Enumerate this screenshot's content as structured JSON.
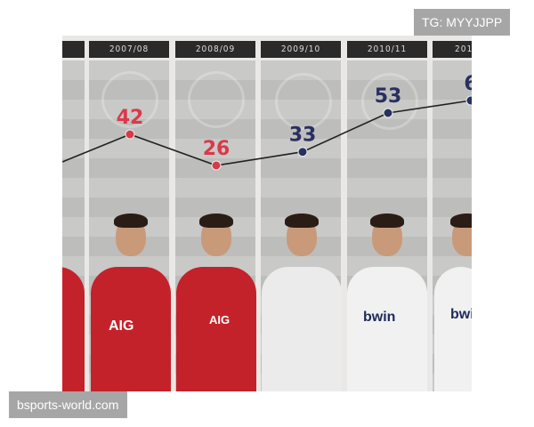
{
  "watermarks": {
    "top": "TG: MYYJJPP",
    "bottom": "bsports-world.com"
  },
  "colors": {
    "man_utd": "#d93a4a",
    "real_madrid": "#27305f",
    "line": "#222222"
  },
  "chart_data": {
    "type": "line",
    "categories": [
      "",
      "2007/08",
      "2008/09",
      "2009/10",
      "2010/11",
      "201"
    ],
    "values": [
      null,
      42,
      26,
      33,
      53,
      null
    ],
    "data_labels": [
      "",
      "42",
      "26",
      "33",
      "53",
      "6"
    ],
    "point_colors": [
      "#d93a4a",
      "#d93a4a",
      "#d93a4a",
      "#27305f",
      "#27305f",
      "#27305f"
    ],
    "grid": false,
    "legend": "none"
  }
}
